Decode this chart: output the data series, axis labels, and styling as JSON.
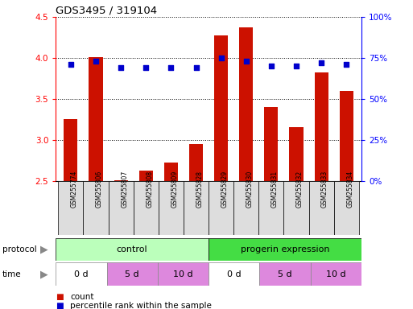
{
  "title": "GDS3495 / 319104",
  "samples": [
    "GSM255774",
    "GSM255806",
    "GSM255807",
    "GSM255808",
    "GSM255809",
    "GSM255828",
    "GSM255829",
    "GSM255830",
    "GSM255831",
    "GSM255832",
    "GSM255833",
    "GSM255834"
  ],
  "count_values": [
    3.25,
    4.01,
    2.51,
    2.62,
    2.72,
    2.95,
    4.28,
    4.37,
    3.4,
    3.15,
    3.82,
    3.6
  ],
  "percentile_values": [
    71,
    73,
    69,
    69,
    69,
    69,
    75,
    73,
    70,
    70,
    72,
    71
  ],
  "ylim_left": [
    2.5,
    4.5
  ],
  "ylim_right": [
    0,
    100
  ],
  "yticks_left": [
    2.5,
    3.0,
    3.5,
    4.0,
    4.5
  ],
  "yticks_right": [
    0,
    25,
    50,
    75,
    100
  ],
  "bar_color": "#cc1100",
  "dot_color": "#0000cc",
  "protocol_colors": [
    "#bbffbb",
    "#44dd44"
  ],
  "protocol_labels": [
    "control",
    "progerin expression"
  ],
  "protocol_ranges": [
    [
      0,
      6
    ],
    [
      6,
      12
    ]
  ],
  "time_groups": [
    {
      "label": "0 d",
      "start": 0,
      "end": 2,
      "color": "#ffffff"
    },
    {
      "label": "5 d",
      "start": 2,
      "end": 4,
      "color": "#dd88dd"
    },
    {
      "label": "10 d",
      "start": 4,
      "end": 6,
      "color": "#dd88dd"
    },
    {
      "label": "0 d",
      "start": 6,
      "end": 8,
      "color": "#ffffff"
    },
    {
      "label": "5 d",
      "start": 8,
      "end": 10,
      "color": "#dd88dd"
    },
    {
      "label": "10 d",
      "start": 10,
      "end": 12,
      "color": "#dd88dd"
    }
  ],
  "legend_items": [
    {
      "label": "count",
      "color": "#cc1100"
    },
    {
      "label": "percentile rank within the sample",
      "color": "#0000cc"
    }
  ],
  "xtick_bg": "#dddddd",
  "bg_color": "#ffffff"
}
